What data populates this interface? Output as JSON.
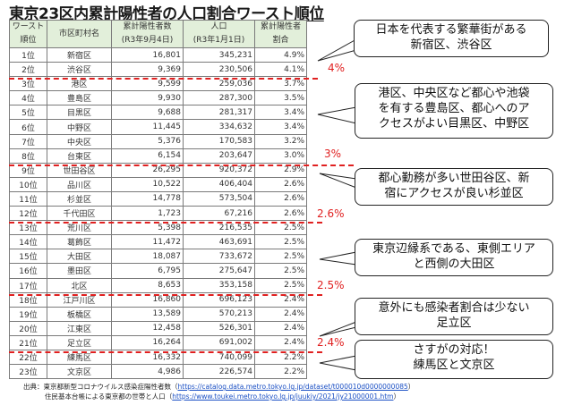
{
  "title": "東京23区内累計陽性者の人口割合ワースト順位",
  "table": {
    "headers": [
      [
        "ワースト",
        "順位"
      ],
      [
        "市区町村名"
      ],
      [
        "累計陽性者数",
        "(R3年9月4日)"
      ],
      [
        "人口",
        "(R3年1月1日)"
      ],
      [
        "累計陽性者",
        "割合"
      ]
    ],
    "rows": [
      {
        "rank": "1位",
        "ward": "新宿区",
        "cases": "16,801",
        "population": "345,231",
        "ratio": "4.9%"
      },
      {
        "rank": "2位",
        "ward": "渋谷区",
        "cases": "9,369",
        "population": "230,506",
        "ratio": "4.1%"
      },
      {
        "rank": "3位",
        "ward": "港区",
        "cases": "9,599",
        "population": "259,036",
        "ratio": "3.7%"
      },
      {
        "rank": "4位",
        "ward": "豊島区",
        "cases": "9,930",
        "population": "287,300",
        "ratio": "3.5%"
      },
      {
        "rank": "5位",
        "ward": "目黒区",
        "cases": "9,688",
        "population": "281,317",
        "ratio": "3.4%"
      },
      {
        "rank": "6位",
        "ward": "中野区",
        "cases": "11,445",
        "population": "334,632",
        "ratio": "3.4%"
      },
      {
        "rank": "7位",
        "ward": "中央区",
        "cases": "5,376",
        "population": "170,583",
        "ratio": "3.2%"
      },
      {
        "rank": "8位",
        "ward": "台東区",
        "cases": "6,154",
        "population": "203,647",
        "ratio": "3.0%"
      },
      {
        "rank": "9位",
        "ward": "世田谷区",
        "cases": "26,295",
        "population": "920,372",
        "ratio": "2.9%"
      },
      {
        "rank": "10位",
        "ward": "品川区",
        "cases": "10,522",
        "population": "406,404",
        "ratio": "2.6%"
      },
      {
        "rank": "11位",
        "ward": "杉並区",
        "cases": "14,778",
        "population": "573,504",
        "ratio": "2.6%"
      },
      {
        "rank": "12位",
        "ward": "千代田区",
        "cases": "1,723",
        "population": "67,216",
        "ratio": "2.6%"
      },
      {
        "rank": "13位",
        "ward": "荒川区",
        "cases": "5,398",
        "population": "216,535",
        "ratio": "2.5%"
      },
      {
        "rank": "14位",
        "ward": "葛飾区",
        "cases": "11,472",
        "population": "463,691",
        "ratio": "2.5%"
      },
      {
        "rank": "15位",
        "ward": "大田区",
        "cases": "18,087",
        "population": "733,672",
        "ratio": "2.5%"
      },
      {
        "rank": "16位",
        "ward": "墨田区",
        "cases": "6,795",
        "population": "275,647",
        "ratio": "2.5%"
      },
      {
        "rank": "17位",
        "ward": "北区",
        "cases": "8,653",
        "population": "353,158",
        "ratio": "2.5%"
      },
      {
        "rank": "18位",
        "ward": "江戸川区",
        "cases": "16,860",
        "population": "696,123",
        "ratio": "2.4%"
      },
      {
        "rank": "19位",
        "ward": "板橋区",
        "cases": "13,589",
        "population": "570,213",
        "ratio": "2.4%"
      },
      {
        "rank": "20位",
        "ward": "江東区",
        "cases": "12,458",
        "population": "526,301",
        "ratio": "2.4%"
      },
      {
        "rank": "21位",
        "ward": "足立区",
        "cases": "16,264",
        "population": "691,002",
        "ratio": "2.4%"
      },
      {
        "rank": "22位",
        "ward": "練馬区",
        "cases": "16,332",
        "population": "740,099",
        "ratio": "2.2%"
      },
      {
        "rank": "23位",
        "ward": "文京区",
        "cases": "4,986",
        "population": "226,574",
        "ratio": "2.2%"
      }
    ]
  },
  "thresholds": [
    {
      "label": "4%",
      "after_rank": 2
    },
    {
      "label": "3%",
      "after_rank": 8
    },
    {
      "label": "2.6%",
      "after_rank": 12
    },
    {
      "label": "2.5%",
      "after_rank": 17
    },
    {
      "label": "2.4%",
      "after_rank": 21
    }
  ],
  "callouts": [
    {
      "lines": [
        "日本を代表する繁華街がある",
        "新宿区、渋谷区"
      ]
    },
    {
      "lines": [
        "港区、中央区など都心や池袋",
        "を有する豊島区、都心へのア",
        "クセスがよい目黒区、中野区"
      ]
    },
    {
      "lines": [
        "都心勤務が多い世田谷区、新",
        "宿にアクセスが良い杉並区"
      ]
    },
    {
      "lines": [
        "東京辺縁系である、東側エリア",
        "と西側の大田区"
      ]
    },
    {
      "lines": [
        "意外にも感染者割合は少ない",
        "足立区"
      ]
    },
    {
      "lines": [
        "さすがの対応！",
        "練馬区と文京区"
      ]
    }
  ],
  "source": {
    "prefix": "出典：",
    "line1_text": "東京都新型コロナウイルス感染症陽性者数（",
    "line1_url": "https://catalog.data.metro.tokyo.lg.jp/dataset/t000010d0000000085",
    "line1_close": "）",
    "line2_text": "住民基本台帳による東京都の世帯と人口（",
    "line2_url": "https://www.toukei.metro.tokyo.lg.jp/juukiy/2021/jy21000001.htm",
    "line2_close": "）"
  },
  "colors": {
    "header_bg": "#e2efda",
    "threshold_red": "#e02020",
    "link_blue": "#1a4fc4"
  }
}
